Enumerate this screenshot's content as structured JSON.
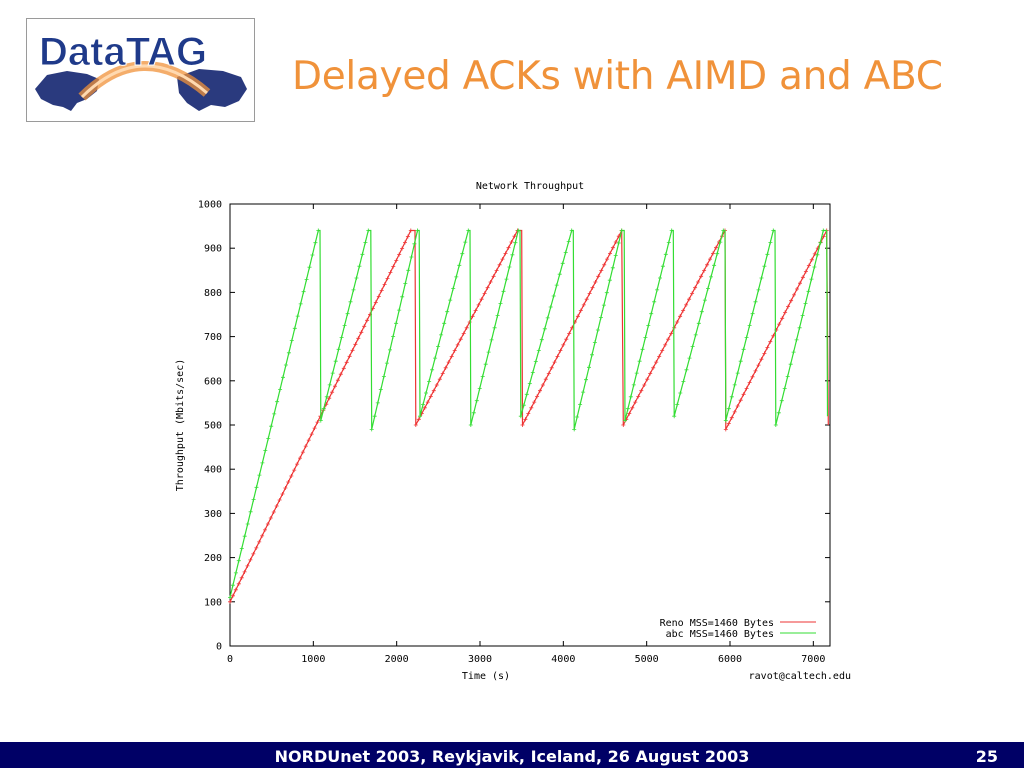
{
  "logo": {
    "text": "DataTAG"
  },
  "slide": {
    "title": "Delayed ACKs with AIMD and ABC"
  },
  "footer": {
    "text": "NORDUnet 2003, Reykjavik, Iceland, 26 August 2003",
    "page_number": "25"
  },
  "colors": {
    "title": "#f0923a",
    "footer_bg": "#000066",
    "reno": "#ee3333",
    "abc": "#33dd33"
  },
  "chart_data": {
    "type": "line",
    "title": "Network Throughput",
    "xlabel": "Time (s)",
    "ylabel": "Throughput (Mbits/sec)",
    "credit": "ravot@caltech.edu",
    "xlim": [
      0,
      7200
    ],
    "ylim": [
      0,
      1000
    ],
    "xticks": [
      0,
      1000,
      2000,
      3000,
      4000,
      5000,
      6000,
      7000
    ],
    "yticks": [
      0,
      100,
      200,
      300,
      400,
      500,
      600,
      700,
      800,
      900,
      1000
    ],
    "grid": false,
    "legend_position": "bottom-right",
    "series": [
      {
        "name": "Reno MSS=1460 Bytes",
        "color": "#ee3333",
        "x": [
          0,
          2170,
          2220,
          2230,
          3450,
          3500,
          3510,
          4700,
          4720,
          5940,
          5950,
          7160,
          7180
        ],
        "y": [
          100,
          940,
          940,
          500,
          940,
          940,
          500,
          940,
          500,
          940,
          490,
          940,
          500
        ]
      },
      {
        "name": "abc MSS=1460 Bytes",
        "color": "#33dd33",
        "x": [
          0,
          1060,
          1080,
          1090,
          1660,
          1690,
          1700,
          2250,
          2270,
          2280,
          2860,
          2880,
          2890,
          3460,
          3480,
          3490,
          4100,
          4120,
          4130,
          4700,
          4730,
          4740,
          5300,
          5320,
          5330,
          5920,
          5940,
          5950,
          6520,
          6540,
          6550,
          7120,
          7160,
          7170
        ],
        "y": [
          110,
          940,
          940,
          510,
          940,
          940,
          490,
          940,
          940,
          520,
          940,
          940,
          500,
          940,
          940,
          520,
          940,
          940,
          490,
          940,
          940,
          510,
          940,
          940,
          520,
          940,
          940,
          510,
          940,
          940,
          500,
          940,
          940,
          520
        ]
      }
    ]
  }
}
